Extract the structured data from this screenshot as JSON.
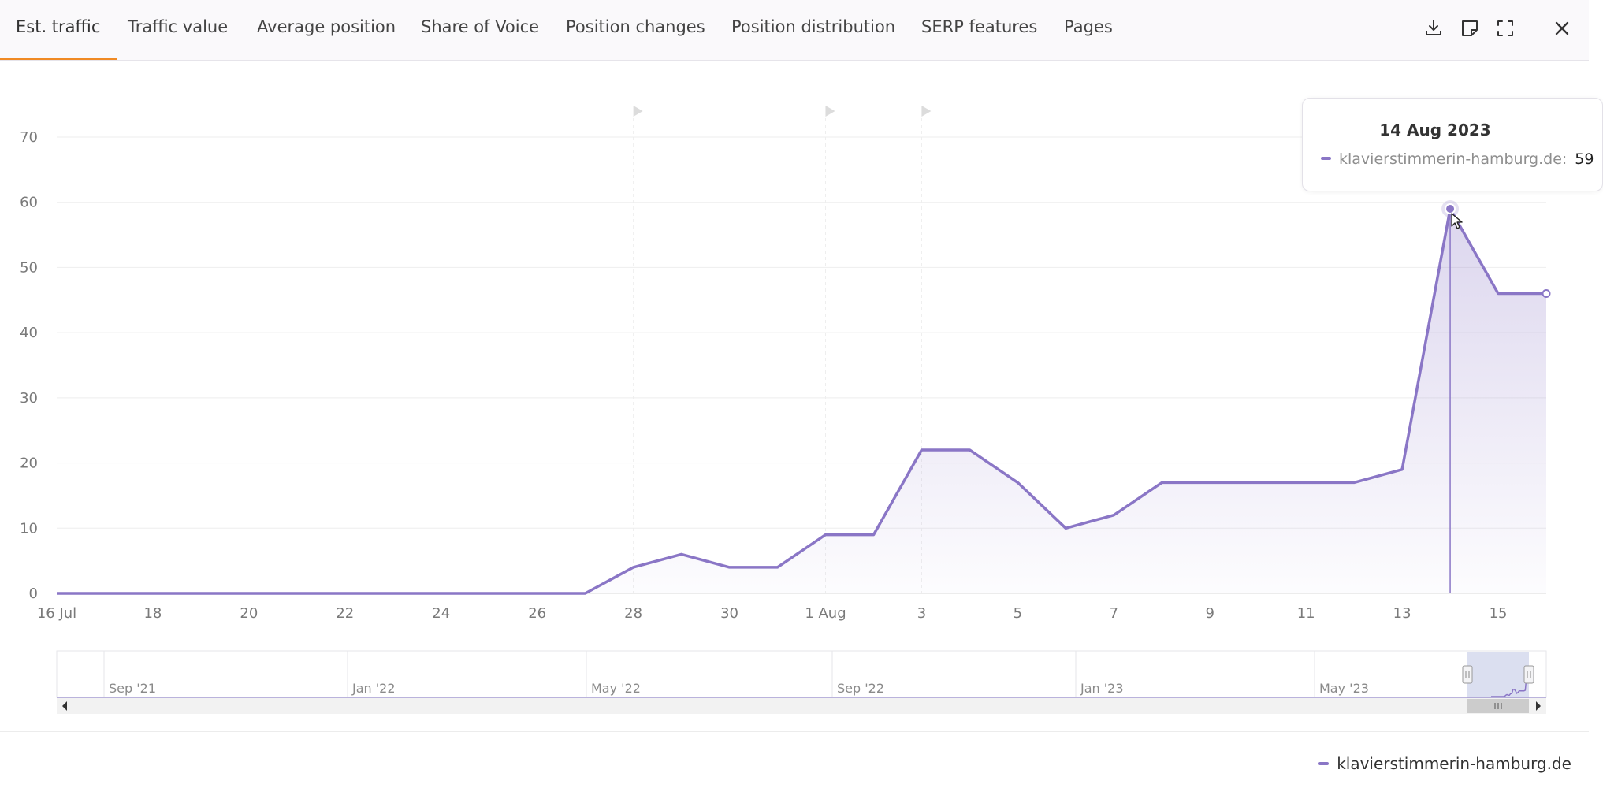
{
  "tabs": [
    {
      "label": "Est. traffic",
      "active": true
    },
    {
      "label": "Traffic value"
    },
    {
      "label": "Average position"
    },
    {
      "label": "Share of Voice"
    },
    {
      "label": "Position changes"
    },
    {
      "label": "Position distribution"
    },
    {
      "label": "SERP features"
    },
    {
      "label": "Pages"
    }
  ],
  "toolbar": {
    "icons": [
      "download-icon",
      "note-icon",
      "fullscreen-icon",
      "close-icon"
    ]
  },
  "colors": {
    "series": "#8a76c6",
    "active_tab_underline": "#f08a24",
    "navigator_selection": "#d7dcee"
  },
  "chart_data": {
    "type": "area",
    "xlabel": "",
    "ylabel": "",
    "ylim": [
      0,
      70
    ],
    "yticks": [
      0,
      10,
      20,
      30,
      40,
      50,
      60,
      70
    ],
    "xlim": [
      "2023-07-16",
      "2023-08-16"
    ],
    "x_tick_labels": [
      "16 Jul",
      "18",
      "20",
      "22",
      "24",
      "26",
      "28",
      "30",
      "1 Aug",
      "3",
      "5",
      "7",
      "9",
      "11",
      "13",
      "15"
    ],
    "grid": true,
    "legend_position": "bottom-right",
    "annotation_flags": [
      "2023-07-28",
      "2023-08-01",
      "2023-08-03"
    ],
    "series": [
      {
        "name": "klavierstimmerin-hamburg.de",
        "x": [
          "2023-07-16",
          "2023-07-17",
          "2023-07-18",
          "2023-07-19",
          "2023-07-20",
          "2023-07-21",
          "2023-07-22",
          "2023-07-23",
          "2023-07-24",
          "2023-07-25",
          "2023-07-26",
          "2023-07-27",
          "2023-07-28",
          "2023-07-29",
          "2023-07-30",
          "2023-07-31",
          "2023-08-01",
          "2023-08-02",
          "2023-08-03",
          "2023-08-04",
          "2023-08-05",
          "2023-08-06",
          "2023-08-07",
          "2023-08-08",
          "2023-08-09",
          "2023-08-10",
          "2023-08-11",
          "2023-08-12",
          "2023-08-13",
          "2023-08-14",
          "2023-08-15",
          "2023-08-16"
        ],
        "values": [
          0,
          0,
          0,
          0,
          0,
          0,
          0,
          0,
          0,
          0,
          0,
          0,
          4,
          6,
          4,
          4,
          9,
          9,
          22,
          22,
          17,
          10,
          12,
          17,
          17,
          17,
          17,
          17,
          19,
          59,
          46,
          46
        ]
      }
    ],
    "tooltip": {
      "date": "14 Aug 2023",
      "series_label": "klavierstimmerin-hamburg.de:",
      "value": "59"
    },
    "navigator": {
      "labels": [
        "Sep '21",
        "Jan '22",
        "May '22",
        "Sep '22",
        "Jan '23",
        "May '23"
      ]
    }
  }
}
